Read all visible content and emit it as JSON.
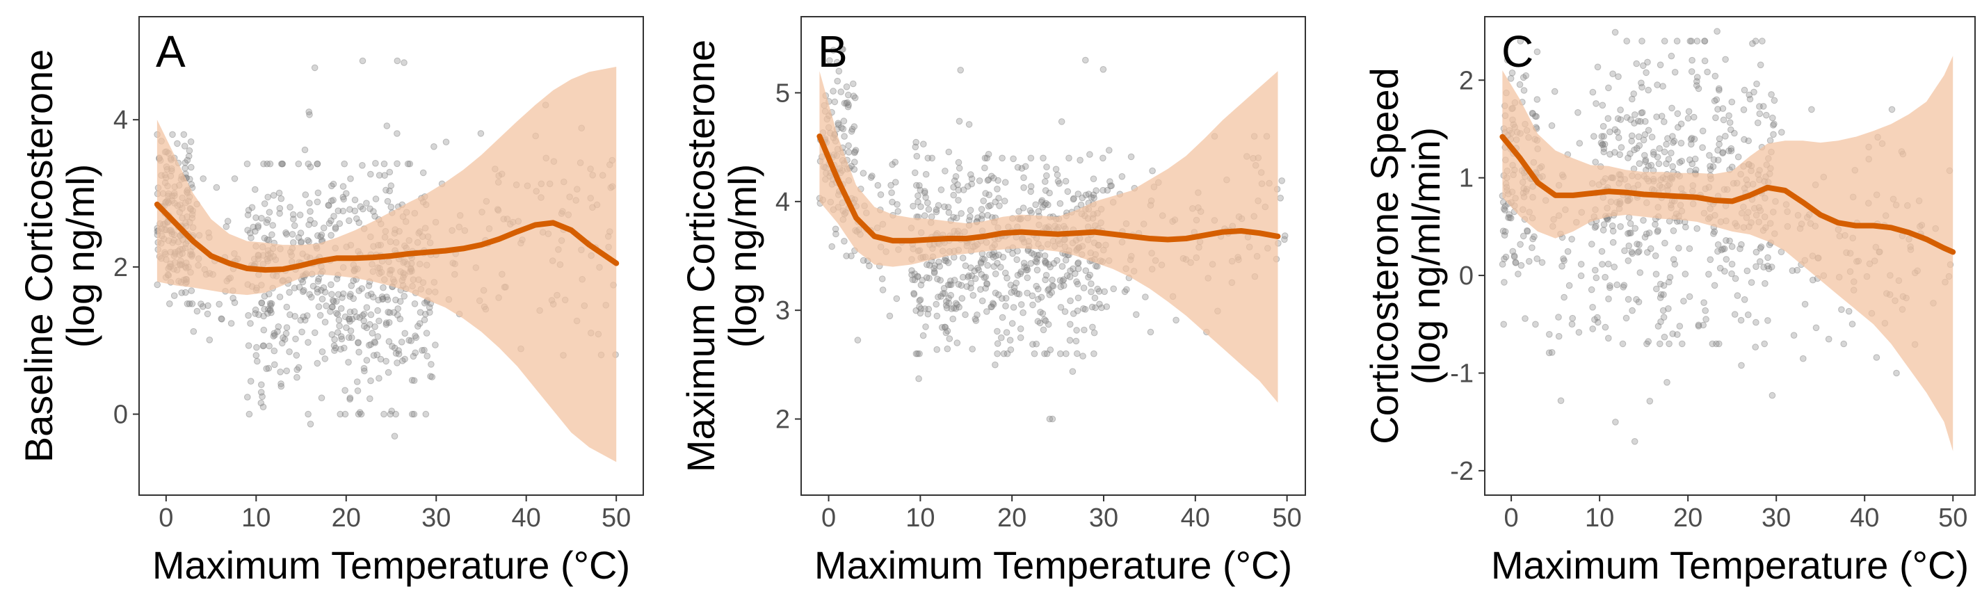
{
  "chart_data": [
    {
      "panel_label": "A",
      "type": "scatter",
      "xlabel": "Maximum Temperature (°C)",
      "ylabel": [
        "Baseline Corticosterone",
        "(log ng/ml)"
      ],
      "xlim": [
        -3,
        53
      ],
      "ylim": [
        -1.1,
        5.4
      ],
      "xticks": [
        0,
        10,
        20,
        30,
        40,
        50
      ],
      "yticks": [
        0,
        2,
        4
      ],
      "grid": false,
      "point_color": "#7f7f7f",
      "line_color": "#D55E00",
      "ribbon_color": "#F2C2A0",
      "smooth": {
        "x": [
          -1,
          1,
          3,
          5,
          7,
          9,
          11,
          13,
          15,
          17,
          19,
          21,
          23,
          25,
          27,
          29,
          31,
          33,
          35,
          37,
          39,
          41,
          43,
          45,
          47,
          50
        ],
        "y": [
          2.85,
          2.6,
          2.35,
          2.15,
          2.05,
          1.98,
          1.96,
          1.97,
          2.02,
          2.08,
          2.12,
          2.12,
          2.13,
          2.15,
          2.18,
          2.2,
          2.22,
          2.25,
          2.3,
          2.38,
          2.48,
          2.57,
          2.6,
          2.5,
          2.3,
          2.05
        ],
        "lower": [
          1.8,
          1.75,
          1.72,
          1.68,
          1.64,
          1.62,
          1.65,
          1.75,
          1.85,
          1.9,
          1.88,
          1.85,
          1.8,
          1.74,
          1.66,
          1.55,
          1.45,
          1.3,
          1.12,
          0.9,
          0.65,
          0.35,
          0.05,
          -0.25,
          -0.45,
          -0.65
        ],
        "upper": [
          4.0,
          3.5,
          3.0,
          2.65,
          2.45,
          2.35,
          2.33,
          2.3,
          2.3,
          2.32,
          2.4,
          2.5,
          2.62,
          2.75,
          2.88,
          3.0,
          3.15,
          3.32,
          3.52,
          3.75,
          3.98,
          4.2,
          4.4,
          4.55,
          4.65,
          4.72
        ]
      },
      "scatter_bands": [
        {
          "x": [
            -1,
            3
          ],
          "y": [
            1.5,
            3.8
          ],
          "n": 190
        },
        {
          "x": [
            3,
            8
          ],
          "y": [
            0.8,
            3.2
          ],
          "n": 40
        },
        {
          "x": [
            9,
            30
          ],
          "y": [
            0.0,
            3.4
          ],
          "n": 500
        },
        {
          "x": [
            9,
            30
          ],
          "y": [
            -0.3,
            4.8
          ],
          "n": 60
        },
        {
          "x": [
            30,
            50
          ],
          "y": [
            0.8,
            4.2
          ],
          "n": 100
        }
      ]
    },
    {
      "panel_label": "B",
      "type": "scatter",
      "xlabel": "Maximum Temperature (°C)",
      "ylabel": [
        "Maximum Corticosterone",
        "(log ng/ml)"
      ],
      "xlim": [
        -3,
        52
      ],
      "ylim": [
        1.3,
        5.7
      ],
      "xticks": [
        0,
        10,
        20,
        30,
        40,
        50
      ],
      "yticks": [
        2,
        3,
        4,
        5
      ],
      "grid": false,
      "point_color": "#7f7f7f",
      "line_color": "#D55E00",
      "ribbon_color": "#F2C2A0",
      "smooth": {
        "x": [
          -1,
          1,
          3,
          5,
          7,
          9,
          11,
          13,
          15,
          17,
          19,
          21,
          23,
          25,
          27,
          29,
          31,
          33,
          35,
          37,
          39,
          41,
          43,
          45,
          47,
          49
        ],
        "y": [
          4.6,
          4.2,
          3.85,
          3.68,
          3.64,
          3.64,
          3.65,
          3.66,
          3.66,
          3.68,
          3.71,
          3.72,
          3.71,
          3.7,
          3.71,
          3.72,
          3.7,
          3.68,
          3.66,
          3.65,
          3.66,
          3.69,
          3.72,
          3.73,
          3.71,
          3.68
        ],
        "lower": [
          4.0,
          3.8,
          3.55,
          3.42,
          3.4,
          3.42,
          3.46,
          3.5,
          3.52,
          3.54,
          3.56,
          3.57,
          3.56,
          3.54,
          3.5,
          3.44,
          3.38,
          3.3,
          3.2,
          3.08,
          2.95,
          2.8,
          2.65,
          2.5,
          2.35,
          2.15
        ],
        "upper": [
          5.2,
          4.6,
          4.15,
          3.95,
          3.88,
          3.85,
          3.84,
          3.82,
          3.8,
          3.82,
          3.86,
          3.88,
          3.87,
          3.86,
          3.92,
          4.0,
          4.05,
          4.1,
          4.2,
          4.3,
          4.42,
          4.58,
          4.75,
          4.9,
          5.05,
          5.2
        ]
      },
      "scatter_bands": [
        {
          "x": [
            -1,
            3
          ],
          "y": [
            3.5,
            5.4
          ],
          "n": 120
        },
        {
          "x": [
            3,
            8
          ],
          "y": [
            2.6,
            4.5
          ],
          "n": 40
        },
        {
          "x": [
            9,
            30
          ],
          "y": [
            2.6,
            4.4
          ],
          "n": 520
        },
        {
          "x": [
            9,
            30
          ],
          "y": [
            2.0,
            5.3
          ],
          "n": 60
        },
        {
          "x": [
            30,
            50
          ],
          "y": [
            2.8,
            4.6
          ],
          "n": 100
        }
      ]
    },
    {
      "panel_label": "C",
      "type": "scatter",
      "xlabel": "Maximum Temperature (°C)",
      "ylabel": [
        "Corticosterone Speed",
        "(log ng/ml/min)"
      ],
      "xlim": [
        -3,
        52.5
      ],
      "ylim": [
        -2.25,
        2.65
      ],
      "xticks": [
        0,
        10,
        20,
        30,
        40,
        50
      ],
      "yticks": [
        -2,
        -1,
        0,
        1,
        2
      ],
      "grid": false,
      "point_color": "#7f7f7f",
      "line_color": "#D55E00",
      "ribbon_color": "#F2C2A0",
      "smooth": {
        "x": [
          -1,
          1,
          3,
          5,
          7,
          9,
          11,
          13,
          15,
          17,
          19,
          21,
          23,
          25,
          27,
          29,
          31,
          33,
          35,
          37,
          39,
          41,
          43,
          45,
          47,
          49,
          50
        ],
        "y": [
          1.42,
          1.2,
          0.95,
          0.82,
          0.82,
          0.84,
          0.86,
          0.85,
          0.83,
          0.82,
          0.81,
          0.8,
          0.77,
          0.76,
          0.82,
          0.9,
          0.87,
          0.75,
          0.62,
          0.54,
          0.51,
          0.51,
          0.49,
          0.44,
          0.37,
          0.28,
          0.24
        ],
        "lower": [
          0.8,
          0.6,
          0.45,
          0.38,
          0.45,
          0.55,
          0.6,
          0.62,
          0.6,
          0.58,
          0.57,
          0.55,
          0.5,
          0.45,
          0.42,
          0.35,
          0.25,
          0.1,
          -0.05,
          -0.2,
          -0.35,
          -0.5,
          -0.7,
          -0.95,
          -1.2,
          -1.5,
          -1.8
        ],
        "upper": [
          2.1,
          1.8,
          1.45,
          1.28,
          1.2,
          1.13,
          1.12,
          1.08,
          1.06,
          1.06,
          1.05,
          1.05,
          1.04,
          1.07,
          1.22,
          1.35,
          1.38,
          1.38,
          1.36,
          1.38,
          1.42,
          1.48,
          1.55,
          1.65,
          1.78,
          2.05,
          2.25
        ]
      },
      "scatter_bands": [
        {
          "x": [
            -1,
            3
          ],
          "y": [
            -0.5,
            2.4
          ],
          "n": 120
        },
        {
          "x": [
            3,
            8
          ],
          "y": [
            -1.3,
            2.0
          ],
          "n": 40
        },
        {
          "x": [
            9,
            30
          ],
          "y": [
            -0.7,
            2.4
          ],
          "n": 480
        },
        {
          "x": [
            9,
            30
          ],
          "y": [
            -1.7,
            2.5
          ],
          "n": 40
        },
        {
          "x": [
            30,
            50
          ],
          "y": [
            -1.0,
            1.7
          ],
          "n": 100
        }
      ]
    }
  ]
}
